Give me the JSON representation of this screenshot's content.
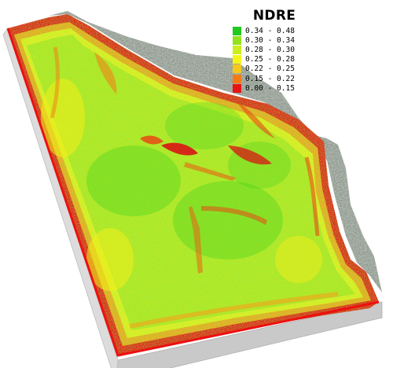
{
  "legend": {
    "title": "NDRE",
    "entries": [
      {
        "label": "0.34 - 0.48",
        "color": "#21c81e"
      },
      {
        "label": "0.30 - 0.34",
        "color": "#93e21c"
      },
      {
        "label": "0.28 - 0.30",
        "color": "#ccee1a"
      },
      {
        "label": "0.25 - 0.28",
        "color": "#f5f51a"
      },
      {
        "label": "0.22 - 0.25",
        "color": "#f5c81a"
      },
      {
        "label": "0.15 - 0.22",
        "color": "#f57a14"
      },
      {
        "label": "0.00 - 0.15",
        "color": "#e81414"
      }
    ]
  }
}
